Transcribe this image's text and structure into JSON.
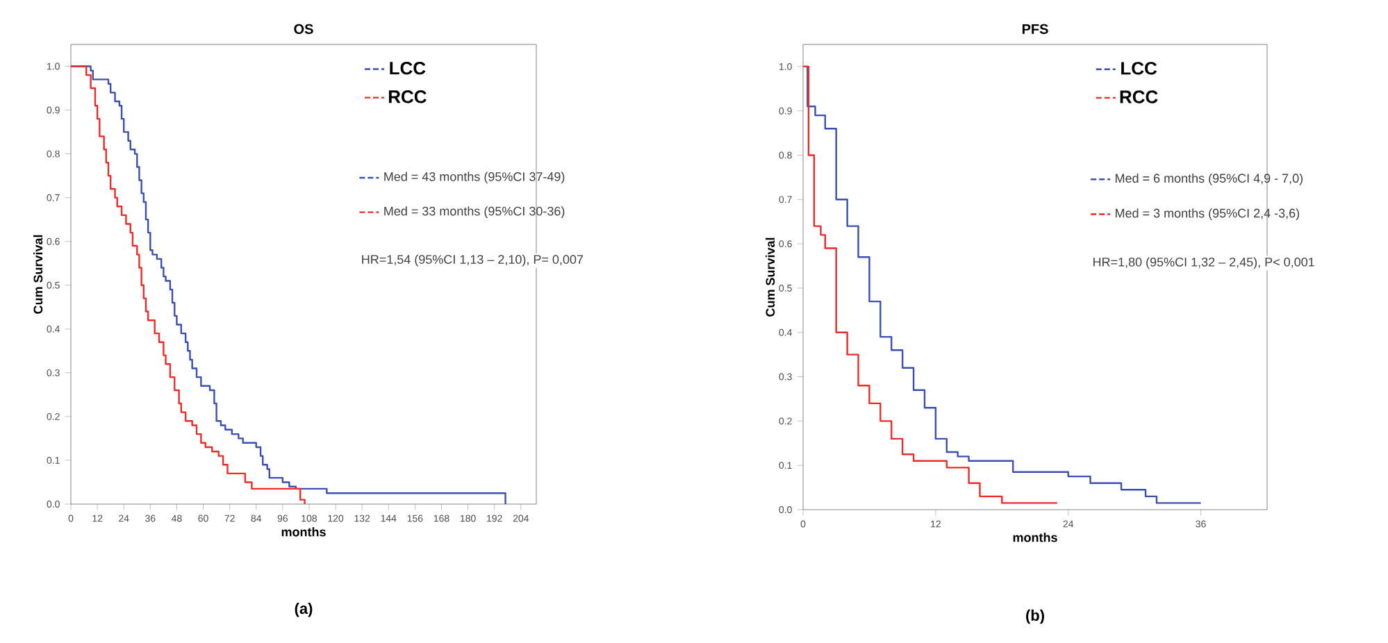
{
  "chart_data": [
    {
      "type": "step",
      "title": "OS",
      "xlabel": "months",
      "ylabel": "Cum Survival",
      "xlim": [
        0,
        211
      ],
      "ylim": [
        0,
        1.05
      ],
      "xticks": [
        0,
        12,
        24,
        36,
        48,
        60,
        72,
        84,
        96,
        108,
        120,
        132,
        144,
        156,
        168,
        180,
        192,
        204
      ],
      "yticks": [
        {
          "value": 0,
          "label": "0.0"
        },
        {
          "value": 0.1,
          "label": "0.1"
        },
        {
          "value": 0.2,
          "label": "0.2"
        },
        {
          "value": 0.3,
          "label": "0.3"
        },
        {
          "value": 0.4,
          "label": "0.4"
        },
        {
          "value": 0.5,
          "label": "0.5"
        },
        {
          "value": 0.6,
          "label": "0.6"
        },
        {
          "value": 0.7,
          "label": "0.7"
        },
        {
          "value": 0.8,
          "label": "0.8"
        },
        {
          "value": 0.9,
          "label": "0.9"
        },
        {
          "value": 1,
          "label": "1.0"
        }
      ],
      "legend": "top right",
      "series": [
        {
          "name": "LCC",
          "color": "#3a4fb0",
          "x": [
            0,
            9,
            10,
            17,
            18,
            20,
            22,
            23,
            24,
            26,
            27,
            29,
            30,
            31,
            32,
            33,
            34,
            35,
            36,
            37,
            39,
            41,
            42,
            43,
            45,
            46,
            47,
            48,
            50,
            52,
            53,
            54,
            55,
            57,
            59,
            63,
            65,
            66,
            68,
            70,
            73,
            76,
            78,
            84,
            86,
            87,
            89,
            90,
            96,
            99,
            102,
            116,
            197
          ],
          "values": [
            1.0,
            0.99,
            0.97,
            0.96,
            0.94,
            0.92,
            0.91,
            0.88,
            0.85,
            0.83,
            0.81,
            0.8,
            0.77,
            0.74,
            0.71,
            0.69,
            0.65,
            0.62,
            0.58,
            0.57,
            0.56,
            0.54,
            0.52,
            0.51,
            0.49,
            0.46,
            0.43,
            0.41,
            0.39,
            0.37,
            0.35,
            0.33,
            0.31,
            0.29,
            0.27,
            0.26,
            0.23,
            0.19,
            0.18,
            0.17,
            0.16,
            0.15,
            0.14,
            0.13,
            0.11,
            0.09,
            0.08,
            0.06,
            0.05,
            0.04,
            0.035,
            0.025,
            0
          ]
        },
        {
          "name": "RCC",
          "color": "#ee2b2b",
          "x": [
            0,
            7,
            9,
            11,
            12,
            13,
            15,
            16,
            17,
            18,
            20,
            21,
            23,
            25,
            27,
            28,
            30,
            31,
            32,
            33,
            34,
            35,
            38,
            40,
            42,
            43,
            45,
            47,
            49,
            50,
            52,
            55,
            57,
            59,
            61,
            64,
            67,
            69,
            71,
            79,
            82,
            104,
            106
          ],
          "values": [
            1.0,
            0.98,
            0.95,
            0.91,
            0.88,
            0.84,
            0.81,
            0.78,
            0.75,
            0.72,
            0.7,
            0.68,
            0.66,
            0.64,
            0.62,
            0.59,
            0.57,
            0.54,
            0.5,
            0.47,
            0.44,
            0.42,
            0.39,
            0.37,
            0.34,
            0.32,
            0.29,
            0.26,
            0.23,
            0.21,
            0.19,
            0.18,
            0.16,
            0.14,
            0.13,
            0.12,
            0.11,
            0.09,
            0.07,
            0.05,
            0.035,
            0.01,
            0
          ]
        }
      ],
      "annotations": [
        "Med = 43 months (95%CI 37-49)",
        "Med = 33 months  (95%CI 30-36)",
        "HR=1,54 (95%CI 1,13 – 2,10), P= 0,007",
        "(a)"
      ]
    },
    {
      "type": "step",
      "title": "PFS",
      "xlabel": "months",
      "ylabel": "Cum Survival",
      "xlim": [
        0,
        42
      ],
      "ylim": [
        0,
        1.05
      ],
      "xticks": [
        0,
        12,
        24,
        36
      ],
      "yticks": [
        {
          "value": 0,
          "label": "0.0"
        },
        {
          "value": 0.1,
          "label": "0.1"
        },
        {
          "value": 0.2,
          "label": "0.2"
        },
        {
          "value": 0.3,
          "label": "0.3"
        },
        {
          "value": 0.4,
          "label": "0.4"
        },
        {
          "value": 0.5,
          "label": "0.5"
        },
        {
          "value": 0.6,
          "label": "0.6"
        },
        {
          "value": 0.7,
          "label": "0.7"
        },
        {
          "value": 0.8,
          "label": "0.8"
        },
        {
          "value": 0.9,
          "label": "0.9"
        },
        {
          "value": 1,
          "label": "1.0"
        }
      ],
      "legend": "top right",
      "series": [
        {
          "name": "LCC",
          "color": "#3a4fb0",
          "x": [
            0,
            0.4,
            1.1,
            2,
            3,
            4,
            5,
            6,
            7,
            8,
            9,
            10,
            11,
            12,
            13,
            14,
            15,
            19,
            24,
            26,
            28.8,
            31,
            32,
            36
          ],
          "values": [
            1.0,
            0.91,
            0.89,
            0.86,
            0.7,
            0.64,
            0.57,
            0.47,
            0.39,
            0.36,
            0.32,
            0.27,
            0.23,
            0.16,
            0.13,
            0.12,
            0.11,
            0.085,
            0.075,
            0.06,
            0.045,
            0.03,
            0.015,
            0.015
          ]
        },
        {
          "name": "RCC",
          "color": "#ee2b2b",
          "x": [
            0,
            0.5,
            1,
            1.6,
            2,
            3,
            4,
            5,
            6,
            7,
            8,
            9,
            10,
            13,
            15,
            16,
            18,
            23
          ],
          "values": [
            1.0,
            0.8,
            0.64,
            0.62,
            0.59,
            0.4,
            0.35,
            0.28,
            0.24,
            0.2,
            0.16,
            0.125,
            0.11,
            0.095,
            0.06,
            0.03,
            0.015,
            0.015
          ]
        }
      ],
      "annotations": [
        "Med = 6 months (95%CI 4,9 - 7,0)",
        "Med = 3 months  (95%CI 2,4 -3,6)",
        "HR=1,80 (95%CI 1,32 – 2,45), P< 0,001",
        "(b)"
      ]
    }
  ]
}
